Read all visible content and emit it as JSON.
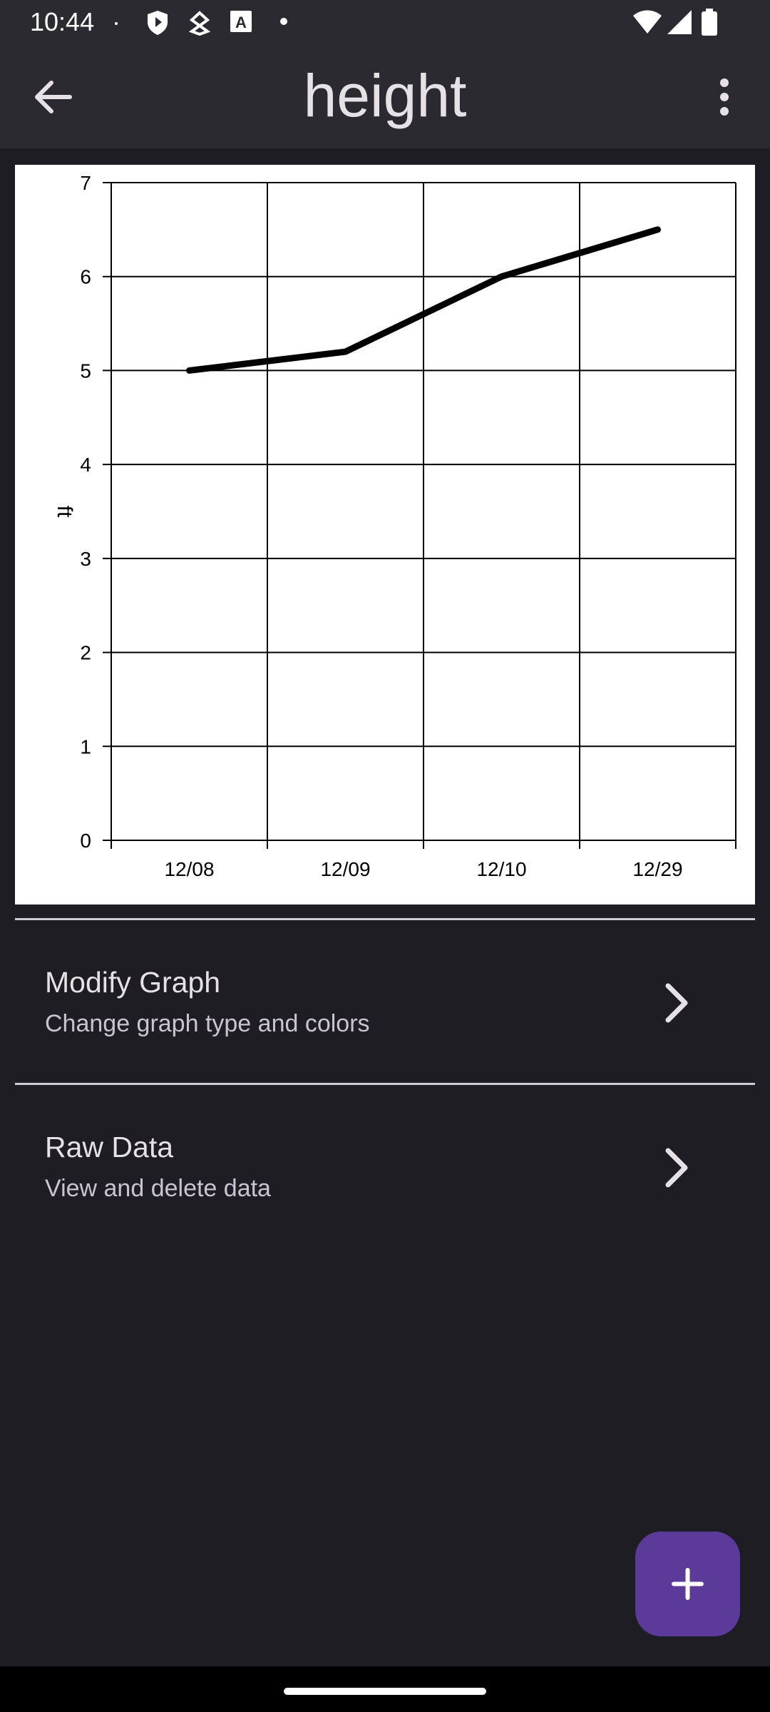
{
  "status_bar": {
    "time": "10:44",
    "icons": [
      "dot-icon",
      "shield-icon",
      "fingerprint-icon",
      "font-a-icon",
      "dot-icon",
      "wifi-icon",
      "signal-icon",
      "battery-icon"
    ]
  },
  "app_bar": {
    "title": "height",
    "back_icon": "arrow-left-icon",
    "menu_icon": "more-vert-icon"
  },
  "chart_data": {
    "type": "line",
    "categories": [
      "12/08",
      "12/09",
      "12/10",
      "12/29"
    ],
    "values": [
      5,
      5.2,
      6,
      6.5
    ],
    "ylabel": "ft",
    "xlabel": "",
    "ylim": [
      0,
      7
    ],
    "yticks": [
      "0",
      "1",
      "2",
      "3",
      "4",
      "5",
      "6",
      "7"
    ],
    "grid": true,
    "line_color": "#000000"
  },
  "list": {
    "items": [
      {
        "title": "Modify Graph",
        "subtitle": "Change graph type and colors"
      },
      {
        "title": "Raw Data",
        "subtitle": "View and delete data"
      }
    ]
  },
  "fab": {
    "icon": "plus-icon",
    "color": "#5b3a9a"
  }
}
